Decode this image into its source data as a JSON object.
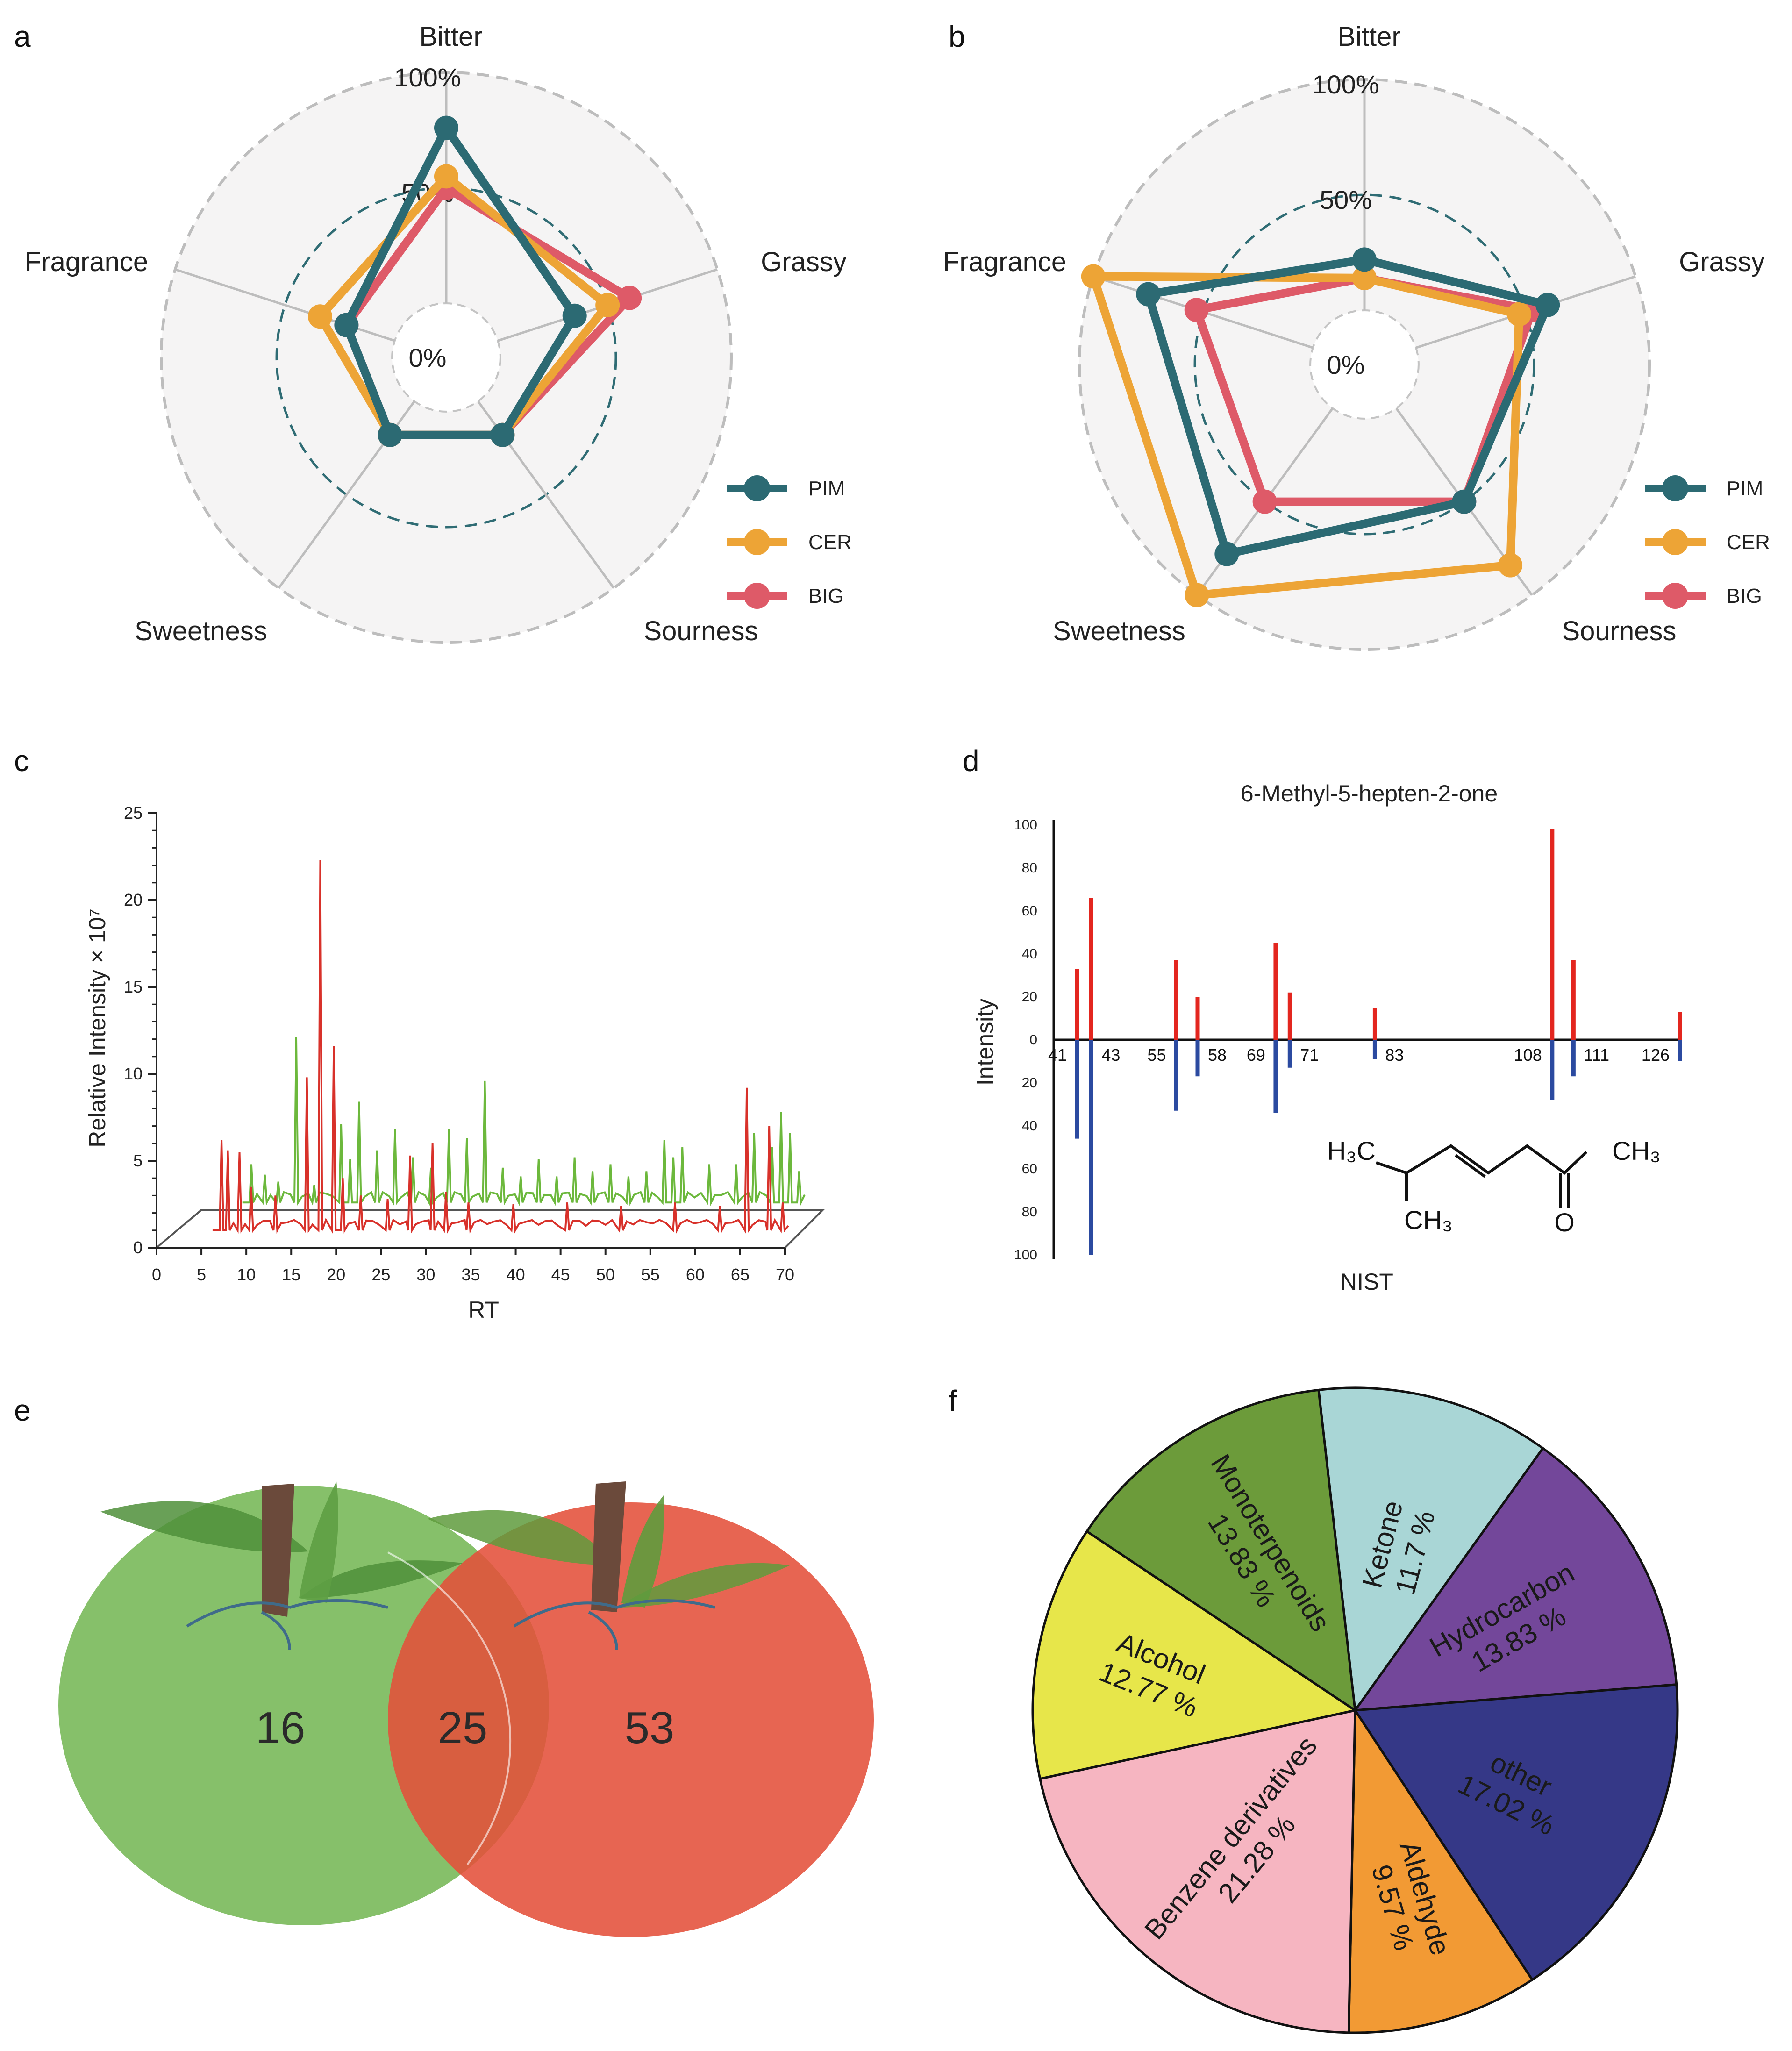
{
  "panels": {
    "a": "a",
    "b": "b",
    "c": "c",
    "d": "d",
    "e": "e",
    "f": "f"
  },
  "colors": {
    "PIM": "#2c6a73",
    "CER": "#eda436",
    "BIG": "#de5a68",
    "green_trace": "#6cb83c",
    "red_trace": "#d8312a",
    "nist_red": "#e3261f",
    "nist_blue": "#2b4aa0"
  },
  "chart_data": [
    {
      "id": "a",
      "type": "radar",
      "categories": [
        "Bitter",
        "Grassy",
        "Sourness",
        "Sweetness",
        "Fragrance"
      ],
      "ring_labels": [
        "100%",
        "50%",
        "0%"
      ],
      "series": [
        {
          "name": "PIM",
          "values": [
            76,
            35,
            18,
            18,
            22
          ]
        },
        {
          "name": "CER",
          "values": [
            55,
            50,
            18,
            18,
            34
          ]
        },
        {
          "name": "BIG",
          "values": [
            50,
            60,
            18,
            18,
            22
          ]
        }
      ],
      "legend": [
        "PIM",
        "CER",
        "BIG"
      ],
      "legend_position": "right"
    },
    {
      "id": "b",
      "type": "radar",
      "categories": [
        "Bitter",
        "Grassy",
        "Sourness",
        "Sweetness",
        "Fragrance"
      ],
      "ring_labels": [
        "100%",
        "50%",
        "0%"
      ],
      "series": [
        {
          "name": "PIM",
          "values": [
            22,
            60,
            50,
            78,
            75
          ]
        },
        {
          "name": "CER",
          "values": [
            14,
            47,
            84,
            100,
            100
          ]
        },
        {
          "name": "BIG",
          "values": [
            14,
            53,
            50,
            50,
            53
          ]
        }
      ],
      "legend": [
        "PIM",
        "CER",
        "BIG"
      ],
      "legend_position": "right"
    },
    {
      "id": "c",
      "type": "line",
      "xlabel": "RT",
      "ylabel": "Relative Intensity × 10⁷",
      "x_ticks": [
        "0",
        "5",
        "10",
        "15",
        "20",
        "25",
        "30",
        "35",
        "40",
        "45",
        "50",
        "55",
        "60",
        "65",
        "70"
      ],
      "y_ticks": [
        "0",
        "5",
        "10",
        "15",
        "20",
        "25"
      ],
      "xlim": [
        0,
        70
      ],
      "ylim": [
        0,
        25
      ],
      "series": [
        {
          "color": "green",
          "baseline": 2.6,
          "peaks": [
            [
              9,
              2.2
            ],
            [
              10.5,
              1.6
            ],
            [
              12,
              1.2
            ],
            [
              14,
              9.5
            ],
            [
              16,
              1.0
            ],
            [
              19,
              4.5
            ],
            [
              20,
              2.5
            ],
            [
              21,
              5.8
            ],
            [
              23,
              3.0
            ],
            [
              25,
              4.2
            ],
            [
              27,
              2.6
            ],
            [
              29,
              2.0
            ],
            [
              31,
              4.2
            ],
            [
              33,
              3.7
            ],
            [
              35,
              7.0
            ],
            [
              37,
              2.0
            ],
            [
              39,
              1.5
            ],
            [
              41,
              2.5
            ],
            [
              43,
              1.5
            ],
            [
              45,
              2.6
            ],
            [
              47,
              1.8
            ],
            [
              49,
              2.2
            ],
            [
              51,
              1.5
            ],
            [
              53,
              1.8
            ],
            [
              55,
              3.6
            ],
            [
              56,
              2.6
            ],
            [
              57,
              3.2
            ],
            [
              60,
              2.2
            ],
            [
              63,
              2.2
            ],
            [
              65,
              4.0
            ],
            [
              67,
              3.2
            ],
            [
              68,
              5.2
            ],
            [
              69,
              4.0
            ],
            [
              70,
              1.8
            ]
          ]
        },
        {
          "color": "red",
          "baseline": 1.0,
          "peaks": [
            [
              7.5,
              5.2
            ],
            [
              8.2,
              4.6
            ],
            [
              9.5,
              4.5
            ],
            [
              10.8,
              2.5
            ],
            [
              13.5,
              2.0
            ],
            [
              17,
              8.8
            ],
            [
              18.5,
              21.3
            ],
            [
              20,
              10.6
            ],
            [
              21,
              3.0
            ],
            [
              23,
              2.0
            ],
            [
              26,
              1.8
            ],
            [
              28.5,
              4.3
            ],
            [
              31,
              5.0
            ],
            [
              32.5,
              2.2
            ],
            [
              35,
              1.6
            ],
            [
              40,
              1.5
            ],
            [
              46,
              1.6
            ],
            [
              52,
              1.4
            ],
            [
              58,
              1.6
            ],
            [
              63,
              1.4
            ],
            [
              66,
              8.2
            ],
            [
              68.5,
              6.0
            ],
            [
              70,
              1.6
            ]
          ]
        }
      ]
    },
    {
      "id": "d",
      "type": "bar",
      "title": "6-Methyl-5-hepten-2-one",
      "xlabel": "NIST",
      "ylabel": "Intensity",
      "y_ticks_up": [
        "100",
        "80",
        "60",
        "40",
        "20",
        "0"
      ],
      "y_ticks_down": [
        "20",
        "40",
        "60",
        "80",
        "100"
      ],
      "ylim": [
        -100,
        100
      ],
      "mz_labels": [
        "41",
        "43",
        "55",
        "58",
        "69",
        "71",
        "83",
        "108",
        "111",
        "126"
      ],
      "sample": [
        [
          41,
          33
        ],
        [
          43,
          66
        ],
        [
          55,
          37
        ],
        [
          58,
          20
        ],
        [
          69,
          45
        ],
        [
          71,
          22
        ],
        [
          83,
          15
        ],
        [
          108,
          98
        ],
        [
          111,
          37
        ],
        [
          126,
          13
        ]
      ],
      "nist": [
        [
          41,
          46
        ],
        [
          43,
          100
        ],
        [
          55,
          33
        ],
        [
          58,
          17
        ],
        [
          69,
          34
        ],
        [
          71,
          13
        ],
        [
          83,
          9
        ],
        [
          108,
          28
        ],
        [
          111,
          17
        ],
        [
          126,
          10
        ]
      ],
      "structure": {
        "h3c_left": "H₃C",
        "ch3_right": "CH₃",
        "ch3_bottom": "CH₃",
        "oxygen": "O"
      }
    },
    {
      "id": "e",
      "type": "venn",
      "sets": [
        {
          "color": "green",
          "only": "16"
        },
        {
          "color": "red",
          "only": "53"
        }
      ],
      "intersection": "25"
    },
    {
      "id": "f",
      "type": "pie",
      "slices": [
        {
          "label": "Ketone",
          "value": 11.7,
          "text": "11.7 %",
          "color": "#a9d6d6"
        },
        {
          "label": "Hydrocarbon",
          "value": 13.83,
          "text": "13.83 %",
          "color": "#73479a"
        },
        {
          "label": "other",
          "value": 17.02,
          "text": "17.02 %",
          "color": "#353887"
        },
        {
          "label": "Aldehyde",
          "value": 9.57,
          "text": "9.57 %",
          "color": "#f29a34"
        },
        {
          "label": "Benzene derivatives",
          "value": 21.28,
          "text": "21.28 %",
          "color": "#f6b5c1"
        },
        {
          "label": "Alcohol",
          "value": 12.77,
          "text": "12.77 %",
          "color": "#e7e64a"
        },
        {
          "label": "Monoterpenoids",
          "value": 13.83,
          "text": "13.83 %",
          "color": "#6c9b3a"
        }
      ]
    }
  ]
}
